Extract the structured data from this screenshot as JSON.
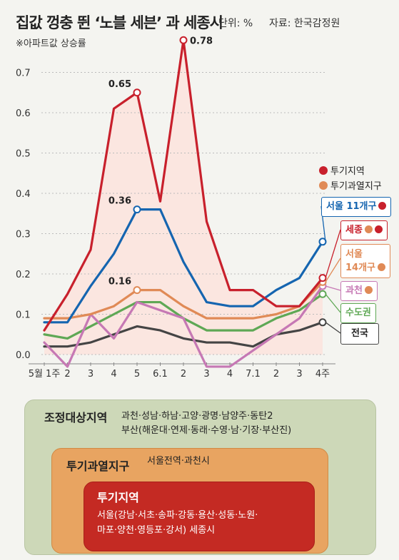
{
  "header": {
    "title": "집값 껑충 뛴 ‘노블 세븐’ 과 세종시",
    "unit": "단위: %",
    "source": "자료: 한국감정원",
    "note": "※아파트값 상승률"
  },
  "legend": [
    {
      "label": "투기지역",
      "color": "#c8202c"
    },
    {
      "label": "투기과열지구",
      "color": "#e08a56"
    }
  ],
  "series_tags": {
    "seoul11": {
      "label": "서울 11개구"
    },
    "sejong": {
      "label": "세종"
    },
    "seoul14": {
      "label_line1": "서울",
      "label_line2": "14개구"
    },
    "gwacheon": {
      "label": "과천"
    },
    "sudo": {
      "label": "수도권"
    },
    "national": {
      "label": "전국"
    }
  },
  "chart_data": {
    "type": "line",
    "x": [
      "5월 1주",
      "2",
      "3",
      "4",
      "5",
      "6.1",
      "2",
      "3",
      "4",
      "7.1",
      "2",
      "3",
      "4주"
    ],
    "ylim": [
      0,
      0.8
    ],
    "yticks": [
      "0.0",
      "0.1",
      "0.2",
      "0.3",
      "0.4",
      "0.5",
      "0.6",
      "0.7"
    ],
    "series": [
      {
        "name": "세종",
        "color": "#c8202c",
        "values": [
          0.06,
          0.15,
          0.26,
          0.61,
          0.65,
          0.38,
          0.78,
          0.33,
          0.16,
          0.16,
          0.12,
          0.12,
          0.19
        ]
      },
      {
        "name": "서울 11개구",
        "color": "#1565b0",
        "values": [
          0.08,
          0.08,
          0.17,
          0.25,
          0.36,
          0.36,
          0.23,
          0.13,
          0.12,
          0.12,
          0.16,
          0.19,
          0.28
        ]
      },
      {
        "name": "서울 14개구",
        "color": "#e08a56",
        "values": [
          0.09,
          0.09,
          0.1,
          0.12,
          0.16,
          0.16,
          0.12,
          0.09,
          0.09,
          0.09,
          0.1,
          0.12,
          0.18
        ]
      },
      {
        "name": "과천",
        "color": "#c678b4",
        "values": [
          0.03,
          -0.03,
          0.1,
          0.04,
          0.13,
          0.11,
          0.09,
          -0.03,
          -0.03,
          0.01,
          0.05,
          0.09,
          0.17
        ]
      },
      {
        "name": "수도권",
        "color": "#5fa855",
        "values": [
          0.05,
          0.04,
          0.07,
          0.1,
          0.13,
          0.13,
          0.09,
          0.06,
          0.06,
          0.06,
          0.09,
          0.11,
          0.15
        ]
      },
      {
        "name": "전국",
        "color": "#444444",
        "values": [
          0.02,
          0.02,
          0.03,
          0.05,
          0.07,
          0.06,
          0.04,
          0.03,
          0.03,
          0.02,
          0.05,
          0.06,
          0.08
        ]
      }
    ],
    "annotations": [
      {
        "series": "세종",
        "x": "5",
        "label": "0.65"
      },
      {
        "series": "세종",
        "x": "2",
        "label": "0.78"
      },
      {
        "series": "서울 11개구",
        "x": "5",
        "label": "0.36"
      },
      {
        "series": "서울 14개구",
        "x": "5",
        "label": "0.16"
      }
    ]
  },
  "zones": {
    "outer": {
      "label": "조정대상지역",
      "line1": "과천·성남·하남·고양·광명·남양주·동탄2",
      "line2": "부산(해운대·연제·동래·수영·남·기장·부산진)"
    },
    "middle": {
      "label": "투기과열지구",
      "line1": "서울전역·과천시"
    },
    "inner": {
      "label": "투기지역",
      "line1": "서울(강남·서초·송파·강동·용산·성동·노원·",
      "line2": "마포·양천·영등포·강서) 세종시"
    }
  }
}
